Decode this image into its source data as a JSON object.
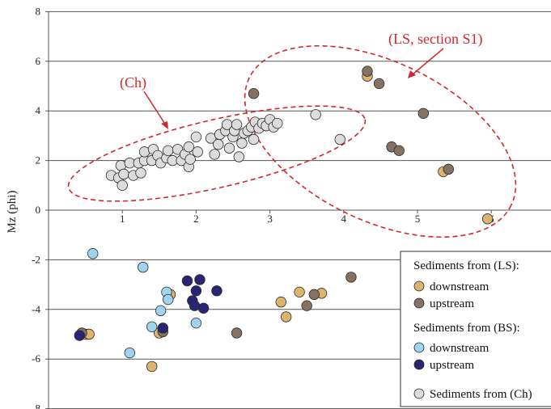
{
  "chart_data": {
    "type": "scatter",
    "ylabel": "Mz (phi)",
    "xlim": [
      0,
      6.6
    ],
    "ylim": [
      -8,
      8
    ],
    "x_ticks": [
      1,
      2,
      3,
      4,
      5,
      6
    ],
    "y_ticks": [
      -8,
      -6,
      -4,
      -2,
      0,
      2,
      4,
      6,
      8
    ],
    "grid": "horizontal",
    "annotations": [
      {
        "text": "(Ch)",
        "color": "#d0282e"
      },
      {
        "text": "(LS, section S1)",
        "color": "#d0282e"
      }
    ],
    "legend": {
      "placement": "bottom-right",
      "groups": [
        {
          "title": "Sediments from (LS):",
          "items": [
            {
              "label": "downstream",
              "series": "ls_down"
            },
            {
              "label": "upstream",
              "series": "ls_up"
            }
          ]
        },
        {
          "title": "Sediments from (BS):",
          "items": [
            {
              "label": "downstream",
              "series": "bs_down"
            },
            {
              "label": "upstream",
              "series": "bs_up"
            }
          ]
        },
        {
          "title": "",
          "items": [
            {
              "label": "Sediments from (Ch)",
              "series": "ch"
            }
          ]
        }
      ]
    },
    "series": [
      {
        "key": "ch",
        "color": "#dcdcdc",
        "points": [
          [
            0.85,
            1.4
          ],
          [
            0.95,
            1.3
          ],
          [
            0.98,
            1.8
          ],
          [
            1.0,
            1.0
          ],
          [
            1.02,
            1.45
          ],
          [
            1.1,
            1.9
          ],
          [
            1.15,
            1.4
          ],
          [
            1.22,
            1.9
          ],
          [
            1.25,
            1.5
          ],
          [
            1.3,
            2.0
          ],
          [
            1.3,
            2.35
          ],
          [
            1.4,
            2.0
          ],
          [
            1.42,
            2.45
          ],
          [
            1.48,
            2.2
          ],
          [
            1.52,
            1.9
          ],
          [
            1.6,
            2.1
          ],
          [
            1.62,
            2.4
          ],
          [
            1.68,
            2.0
          ],
          [
            1.75,
            2.45
          ],
          [
            1.8,
            2.0
          ],
          [
            1.85,
            2.25
          ],
          [
            1.9,
            1.75
          ],
          [
            1.9,
            2.55
          ],
          [
            1.92,
            2.05
          ],
          [
            2.0,
            2.95
          ],
          [
            2.02,
            2.35
          ],
          [
            2.2,
            2.9
          ],
          [
            2.25,
            2.25
          ],
          [
            2.3,
            2.65
          ],
          [
            2.32,
            3.05
          ],
          [
            2.4,
            3.2
          ],
          [
            2.42,
            3.45
          ],
          [
            2.45,
            2.5
          ],
          [
            2.5,
            2.95
          ],
          [
            2.52,
            3.2
          ],
          [
            2.55,
            3.45
          ],
          [
            2.58,
            2.15
          ],
          [
            2.62,
            2.7
          ],
          [
            2.65,
            3.1
          ],
          [
            2.7,
            3.2
          ],
          [
            2.75,
            3.35
          ],
          [
            2.78,
            2.85
          ],
          [
            2.8,
            3.55
          ],
          [
            2.85,
            3.3
          ],
          [
            2.9,
            3.5
          ],
          [
            2.95,
            3.4
          ],
          [
            3.0,
            3.65
          ],
          [
            3.05,
            3.35
          ],
          [
            3.1,
            3.5
          ],
          [
            3.62,
            3.85
          ],
          [
            3.95,
            2.85
          ]
        ]
      },
      {
        "key": "ls_down",
        "color": "#dcb46e",
        "points": [
          [
            0.5,
            -5.0
          ],
          [
            0.55,
            -5.0
          ],
          [
            1.4,
            -6.3
          ],
          [
            1.5,
            -4.95
          ],
          [
            1.65,
            -3.4
          ],
          [
            3.15,
            -3.7
          ],
          [
            3.22,
            -4.3
          ],
          [
            3.4,
            -3.3
          ],
          [
            3.7,
            -3.35
          ],
          [
            4.32,
            5.4
          ],
          [
            5.35,
            1.55
          ],
          [
            5.95,
            -0.35
          ]
        ]
      },
      {
        "key": "ls_up",
        "color": "#857262",
        "points": [
          [
            0.45,
            -4.95
          ],
          [
            1.55,
            -4.9
          ],
          [
            2.55,
            -4.95
          ],
          [
            2.78,
            4.7
          ],
          [
            3.5,
            -3.85
          ],
          [
            3.6,
            -3.4
          ],
          [
            4.1,
            -2.7
          ],
          [
            4.32,
            5.6
          ],
          [
            4.48,
            5.1
          ],
          [
            4.65,
            2.55
          ],
          [
            4.75,
            2.4
          ],
          [
            5.08,
            3.9
          ],
          [
            5.42,
            1.65
          ]
        ]
      },
      {
        "key": "bs_down",
        "color": "#9ed4ef",
        "points": [
          [
            0.6,
            -1.75
          ],
          [
            1.1,
            -5.75
          ],
          [
            1.28,
            -2.3
          ],
          [
            1.4,
            -4.7
          ],
          [
            1.52,
            -4.05
          ],
          [
            1.6,
            -3.3
          ],
          [
            1.62,
            -3.6
          ],
          [
            2.0,
            -4.55
          ]
        ]
      },
      {
        "key": "bs_up",
        "color": "#2a2473",
        "points": [
          [
            0.42,
            -5.05
          ],
          [
            1.55,
            -4.75
          ],
          [
            1.88,
            -2.85
          ],
          [
            1.95,
            -3.65
          ],
          [
            1.98,
            -3.85
          ],
          [
            2.0,
            -3.25
          ],
          [
            2.05,
            -2.8
          ],
          [
            2.1,
            -3.95
          ],
          [
            2.28,
            -3.25
          ]
        ]
      }
    ]
  }
}
